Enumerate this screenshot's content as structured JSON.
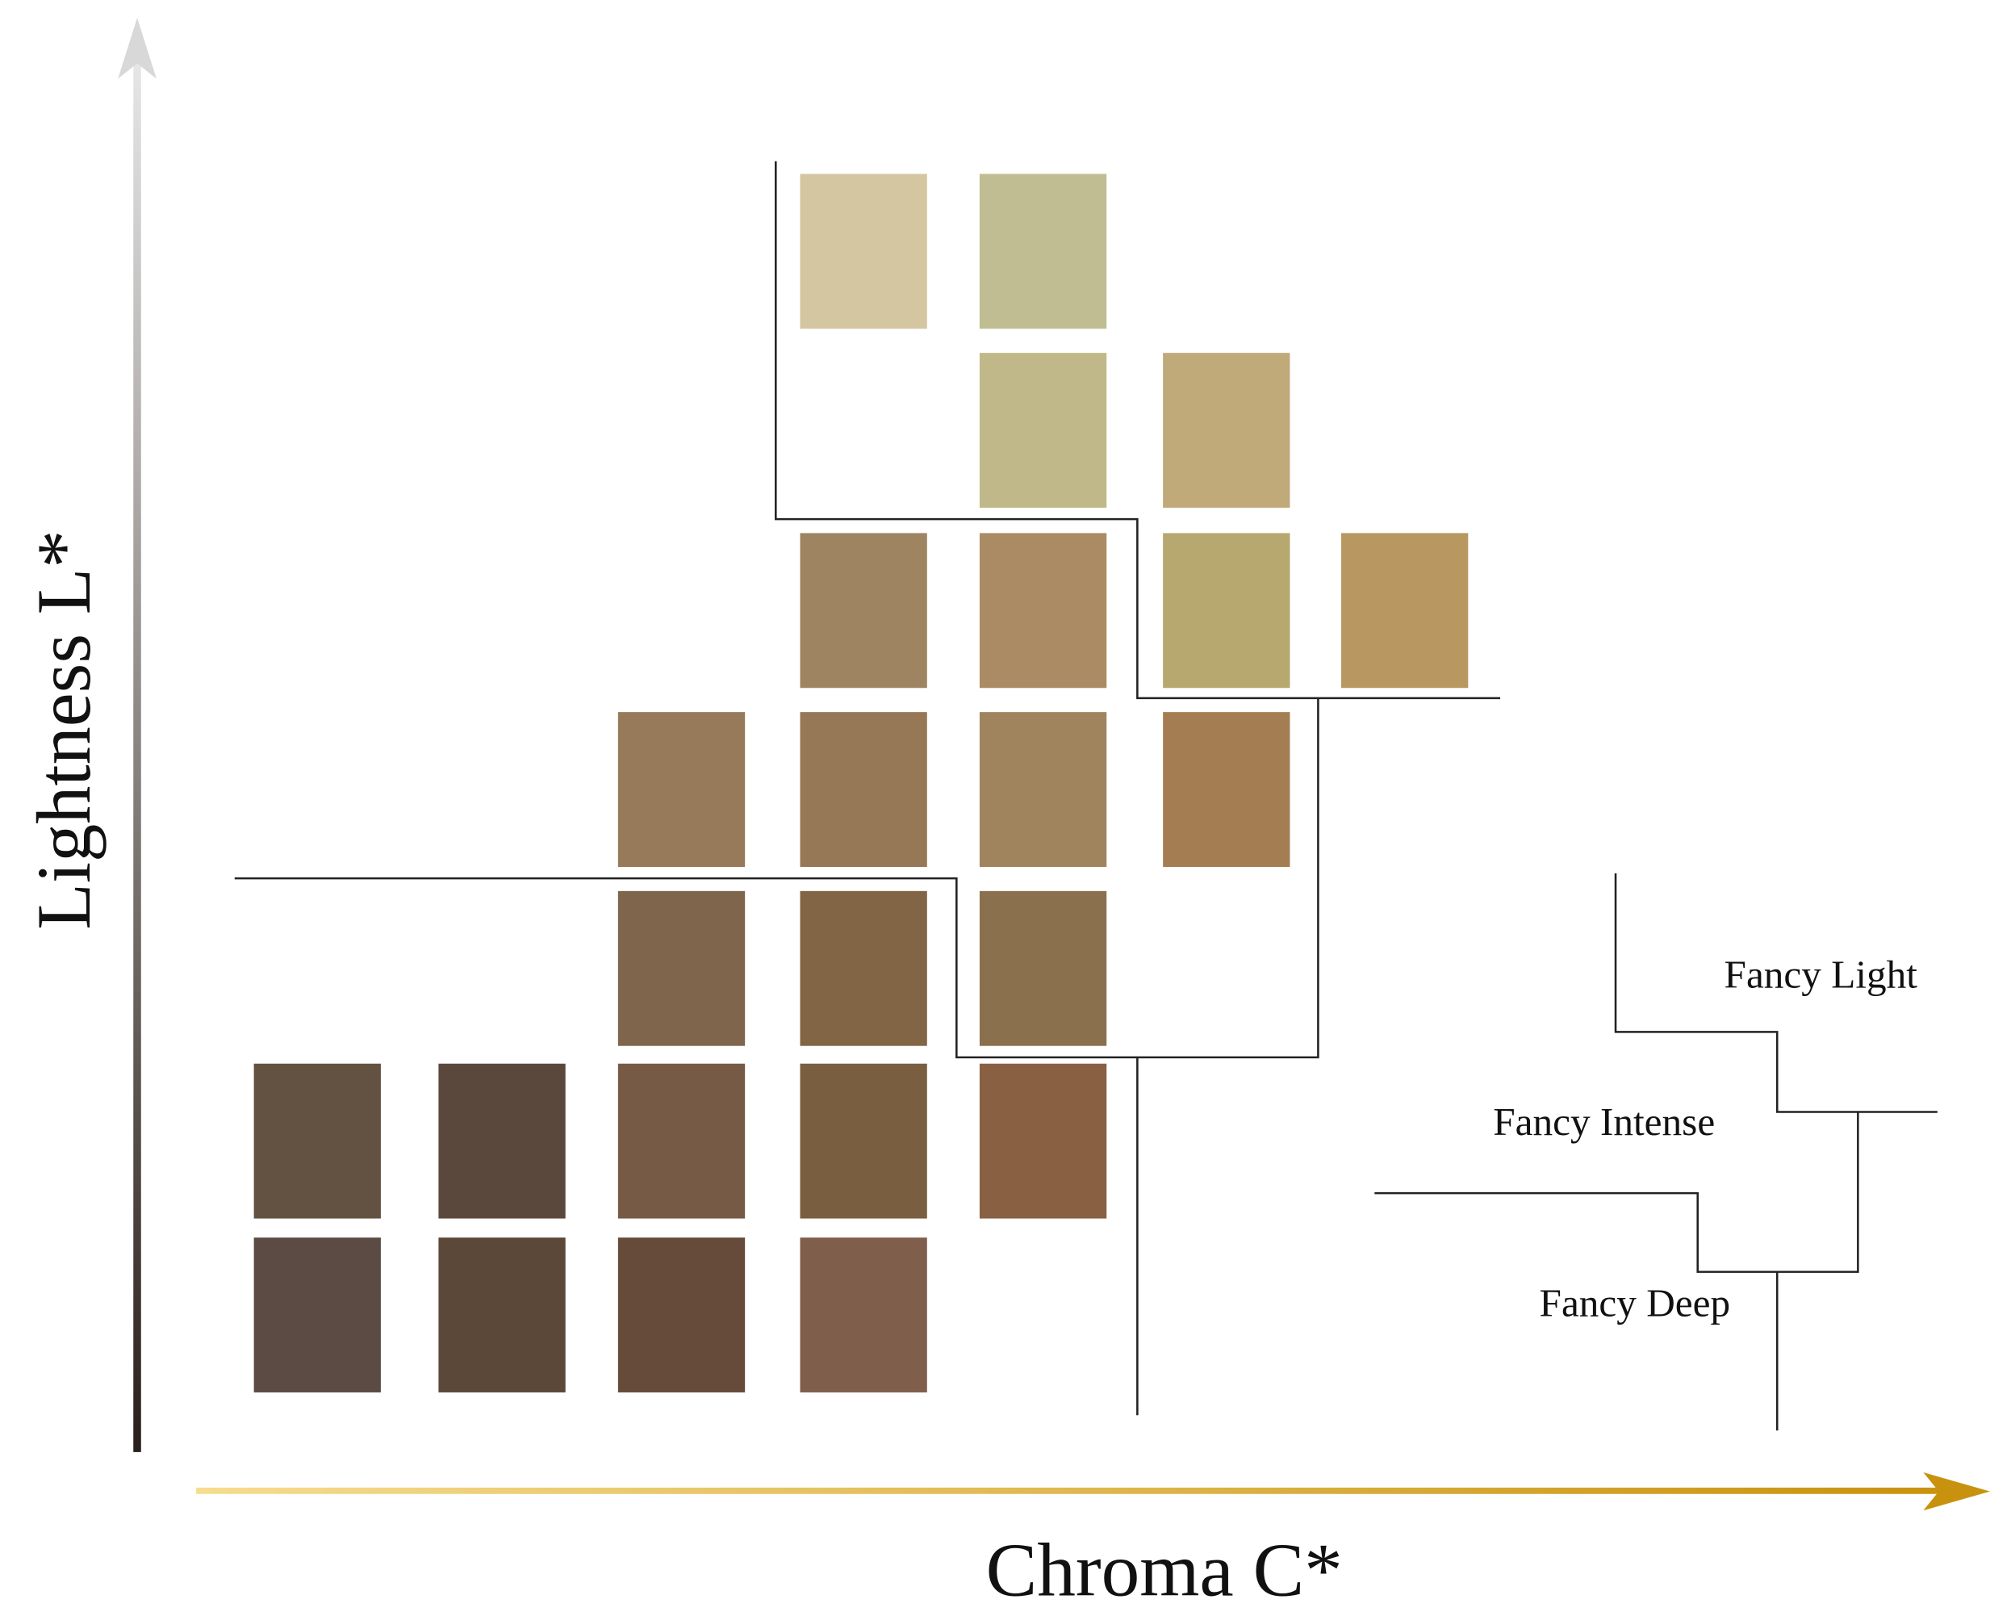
{
  "axes": {
    "y_label": "Lightness L*",
    "x_label": "Chroma C*"
  },
  "legend": {
    "labels": [
      "Fancy Light",
      "Fancy Intense",
      "Fancy Deep"
    ]
  }
}
